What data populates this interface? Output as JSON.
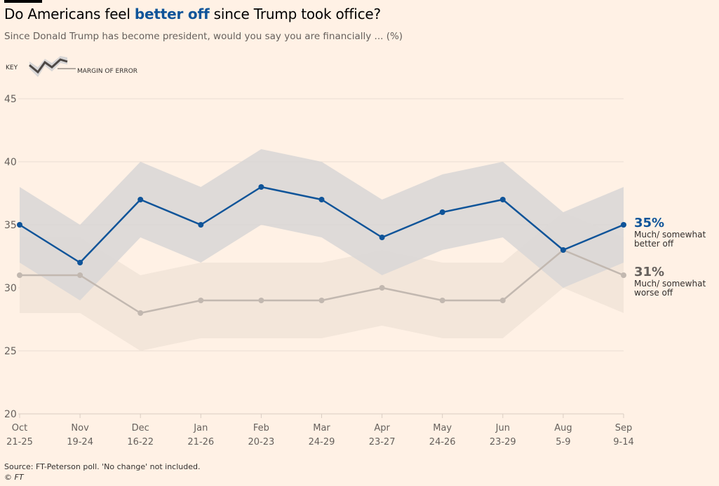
{
  "title": {
    "pre": "Do Americans feel ",
    "highlight": "better off",
    "post": " since Trump took office?"
  },
  "subtitle": "Since Donald Trump has become president, would you say you are financially ... (%)",
  "key": {
    "label": "KEY",
    "moe_label": "MARGIN OF ERROR"
  },
  "source": "Source: FT-Peterson poll. 'No change' not included.",
  "copyright": "© FT",
  "colors": {
    "better": "#0f5499",
    "worse": "#c2b8b0",
    "better_band": "#d8d6d6",
    "worse_band": "#f3e6da",
    "background": "#fff1e5",
    "grid": "#e9ddd2"
  },
  "chart_data": {
    "type": "line",
    "title": "Do Americans feel better off since Trump took office?",
    "subtitle": "Since Donald Trump has become president, would you say you are financially ... (%)",
    "xlabel": "",
    "ylabel": "",
    "ylim": [
      20,
      45
    ],
    "yticks": [
      20,
      25,
      30,
      35,
      40,
      45
    ],
    "grid": true,
    "categories": [
      {
        "month": "Oct",
        "days": "21-25"
      },
      {
        "month": "Nov",
        "days": "19-24"
      },
      {
        "month": "Dec",
        "days": "16-22"
      },
      {
        "month": "Jan",
        "days": "21-26"
      },
      {
        "month": "Feb",
        "days": "20-23"
      },
      {
        "month": "Mar",
        "days": "24-29"
      },
      {
        "month": "Apr",
        "days": "23-27"
      },
      {
        "month": "May",
        "days": "24-26"
      },
      {
        "month": "Jun",
        "days": "23-29"
      },
      {
        "month": "Aug",
        "days": "5-9"
      },
      {
        "month": "Sep",
        "days": "9-14"
      }
    ],
    "margin_of_error": 3,
    "series": [
      {
        "name": "Much/ somewhat better off",
        "key": "better",
        "values": [
          35,
          32,
          37,
          35,
          38,
          37,
          34,
          36,
          37,
          33,
          35
        ],
        "end_label": "35%",
        "desc": [
          "Much/ somewhat",
          "better off"
        ]
      },
      {
        "name": "Much/ somewhat worse off",
        "key": "worse",
        "values": [
          31,
          31,
          28,
          29,
          29,
          29,
          30,
          29,
          29,
          33,
          31
        ],
        "end_label": "31%",
        "desc": [
          "Much/ somewhat",
          "worse off"
        ]
      }
    ],
    "legend": "right-end labels"
  }
}
